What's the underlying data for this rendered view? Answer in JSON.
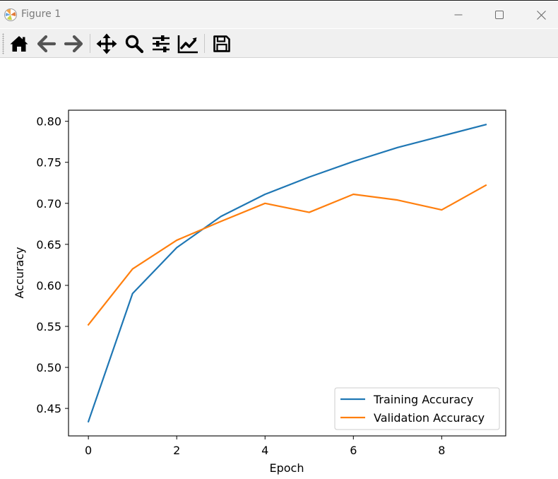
{
  "window": {
    "title": "Figure 1",
    "minimize_icon": "minimize-icon",
    "maximize_icon": "maximize-icon",
    "close_icon": "close-icon"
  },
  "toolbar": {
    "tools": [
      {
        "name": "home",
        "icon": "home-icon"
      },
      {
        "name": "back",
        "icon": "back-arrow-icon"
      },
      {
        "name": "forward",
        "icon": "forward-arrow-icon"
      },
      {
        "name": "pan",
        "icon": "move-icon"
      },
      {
        "name": "zoom",
        "icon": "zoom-icon"
      },
      {
        "name": "subplots",
        "icon": "sliders-icon"
      },
      {
        "name": "customize",
        "icon": "line-chart-icon"
      },
      {
        "name": "save",
        "icon": "save-icon"
      }
    ]
  },
  "chart_data": {
    "type": "line",
    "title": "",
    "xlabel": "Epoch",
    "ylabel": "Accuracy",
    "x": [
      0,
      1,
      2,
      3,
      4,
      5,
      6,
      7,
      8,
      9
    ],
    "xlim": [
      -0.45,
      9.45
    ],
    "ylim": [
      0.4165,
      0.8135
    ],
    "xticks": [
      0,
      2,
      4,
      6,
      8
    ],
    "xtick_labels": [
      "0",
      "2",
      "4",
      "6",
      "8"
    ],
    "yticks": [
      0.45,
      0.5,
      0.55,
      0.6,
      0.65,
      0.7,
      0.75,
      0.8
    ],
    "ytick_labels": [
      "0.45",
      "0.50",
      "0.55",
      "0.60",
      "0.65",
      "0.70",
      "0.75",
      "0.80"
    ],
    "grid": false,
    "legend_position": "lower-right",
    "series": [
      {
        "name": "Training Accuracy",
        "color": "#1f77b4",
        "values": [
          0.434,
          0.59,
          0.646,
          0.684,
          0.711,
          0.732,
          0.751,
          0.768,
          0.782,
          0.796
        ]
      },
      {
        "name": "Validation Accuracy",
        "color": "#ff7f0e",
        "values": [
          0.552,
          0.62,
          0.655,
          0.678,
          0.7,
          0.689,
          0.711,
          0.704,
          0.692,
          0.722
        ]
      }
    ]
  }
}
